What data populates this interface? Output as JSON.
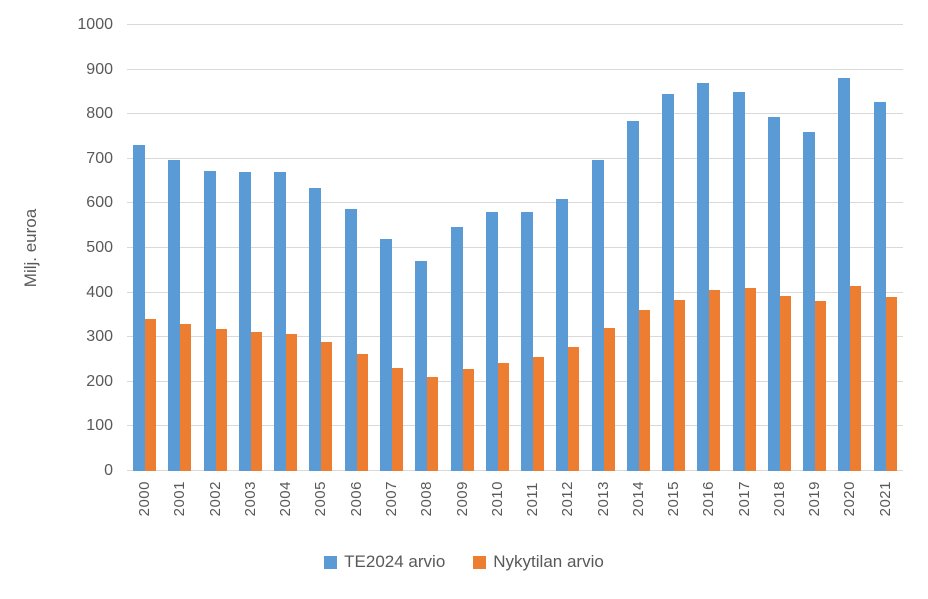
{
  "chart_data": {
    "type": "bar",
    "title": "",
    "xlabel": "",
    "ylabel": "Milj. euroa",
    "ylim": [
      0,
      1000
    ],
    "ytick_step": 100,
    "yticks": [
      0,
      100,
      200,
      300,
      400,
      500,
      600,
      700,
      800,
      900,
      1000
    ],
    "grid": true,
    "legend_position": "bottom",
    "categories": [
      "2000",
      "2001",
      "2002",
      "2003",
      "2004",
      "2005",
      "2006",
      "2007",
      "2008",
      "2009",
      "2010",
      "2011",
      "2012",
      "2013",
      "2014",
      "2015",
      "2016",
      "2017",
      "2018",
      "2019",
      "2020",
      "2021"
    ],
    "series": [
      {
        "name": "TE2024 arvio",
        "color": "#5B9BD5",
        "values": [
          730,
          697,
          673,
          671,
          671,
          635,
          588,
          520,
          470,
          547,
          581,
          580,
          610,
          697,
          785,
          846,
          871,
          849,
          793,
          760,
          881,
          828
        ]
      },
      {
        "name": "Nykytilan arvio",
        "color": "#ED7D31",
        "values": [
          340,
          330,
          319,
          312,
          307,
          289,
          262,
          232,
          210,
          228,
          243,
          255,
          277,
          320,
          360,
          384,
          406,
          410,
          393,
          382,
          414,
          390
        ]
      }
    ]
  },
  "colors": {
    "gridline": "#D9D9D9",
    "text": "#595959",
    "background": "#FFFFFF"
  }
}
